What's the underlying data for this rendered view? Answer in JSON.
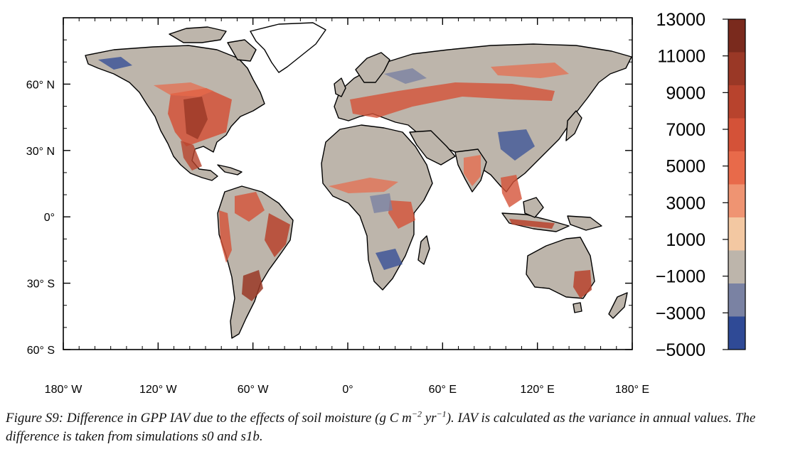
{
  "map": {
    "lat_ticks": [
      {
        "lat": 60,
        "label": "60° N"
      },
      {
        "lat": 30,
        "label": "30° N"
      },
      {
        "lat": 0,
        "label": "0°"
      },
      {
        "lat": -30,
        "label": "30° S"
      },
      {
        "lat": -60,
        "label": "60° S"
      }
    ],
    "lon_ticks": [
      {
        "lon": -180,
        "label": "180° W"
      },
      {
        "lon": -120,
        "label": "120° W"
      },
      {
        "lon": -60,
        "label": "60° W"
      },
      {
        "lon": 0,
        "label": "0°"
      },
      {
        "lon": 60,
        "label": "60° E"
      },
      {
        "lon": 120,
        "label": "120° E"
      },
      {
        "lon": 180,
        "label": "180° E"
      }
    ],
    "lat_range": [
      -60,
      90
    ],
    "lon_range": [
      -180,
      180
    ],
    "land_color": "#bdb5ab",
    "ocean_color": "#ffffff"
  },
  "colorbar": {
    "labels": [
      "13000",
      "11000",
      "9000",
      "7000",
      "5000",
      "3000",
      "1000",
      "−1000",
      "−3000",
      "−5000"
    ],
    "colors": [
      "#7a2a1d",
      "#9a3826",
      "#b8432d",
      "#d45238",
      "#e86a4a",
      "#ef9472",
      "#f3c8a2",
      "#bdb5ab",
      "#7a82a3",
      "#2f4a96"
    ]
  },
  "caption": {
    "part1": "Figure S9: Difference in GPP IAV due to the effects of soil moisture (g C m",
    "exp1": "−2",
    "part2": " yr",
    "exp2": "−1",
    "part3": "). IAV is calculated as the variance in annual values. The difference is taken from simulations s0 and s1b."
  }
}
